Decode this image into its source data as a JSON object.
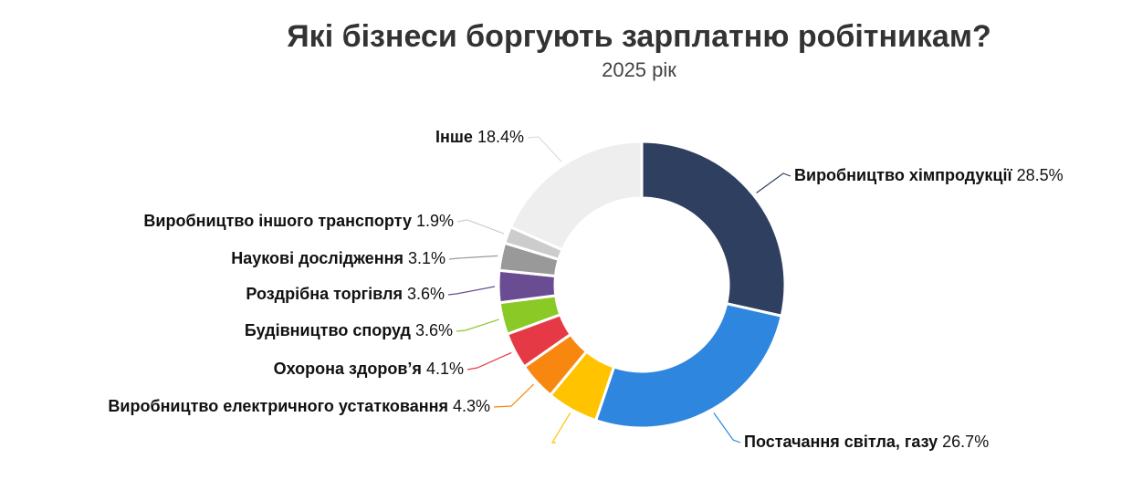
{
  "chart_data": {
    "type": "donut",
    "title": "Які бізнеси боргують зарплатню робітникам?",
    "subtitle": "2025 рік",
    "categories": [
      "Виробництво хімпродукції",
      "Постачання світла, газу",
      null,
      "Виробництво електричного устатковання",
      "Охорона здоров’я",
      "Будівництво споруд",
      "Роздрібна торгівля",
      "Наукові дослідження",
      "Виробництво іншого транспорту",
      "Інше"
    ],
    "values": [
      28.5,
      26.7,
      5.8,
      4.3,
      4.1,
      3.6,
      3.6,
      3.1,
      1.9,
      18.4
    ],
    "value_labels": [
      "28.5%",
      "26.7%",
      null,
      "4.3%",
      "4.1%",
      "3.6%",
      "3.6%",
      "3.1%",
      "1.9%",
      "18.4%"
    ],
    "colors": [
      "#2f3f5f",
      "#2e86de",
      "#ffc300",
      "#f7870f",
      "#e63946",
      "#8ac926",
      "#6a4c93",
      "#999999",
      "#cccccc",
      "#eeeeee"
    ]
  }
}
